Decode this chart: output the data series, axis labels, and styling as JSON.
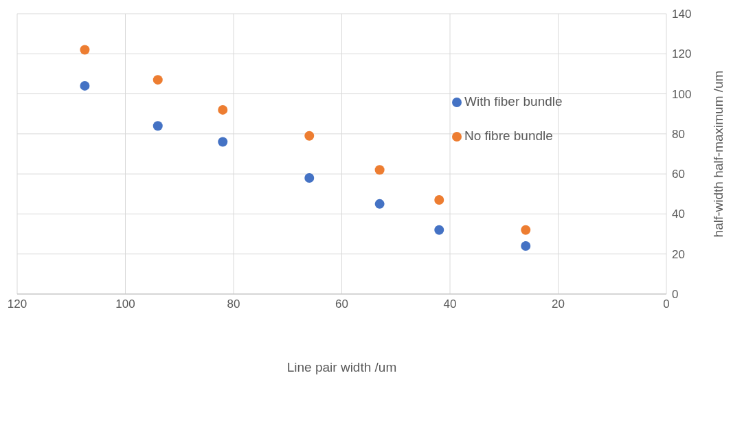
{
  "chart_data": {
    "type": "scatter",
    "xlabel": "Line pair width /um",
    "ylabel": "half-width half-maximum /um",
    "x": [
      107.5,
      94,
      82,
      66,
      53,
      42,
      26
    ],
    "series": [
      {
        "name": "With fiber bundle",
        "color": "#4472c4",
        "values": [
          104,
          84,
          76,
          58,
          45,
          32,
          24
        ]
      },
      {
        "name": "No fibre bundle",
        "color": "#ed7d31",
        "values": [
          122,
          107,
          92,
          79,
          62,
          47,
          32
        ]
      }
    ],
    "xlim": [
      120,
      0
    ],
    "xticks": [
      120,
      100,
      80,
      60,
      40,
      20,
      0
    ],
    "ylim": [
      0,
      140
    ],
    "yticks": [
      0,
      20,
      40,
      60,
      80,
      100,
      120,
      140
    ],
    "grid": true,
    "legend": "top right",
    "marker": "circle"
  }
}
